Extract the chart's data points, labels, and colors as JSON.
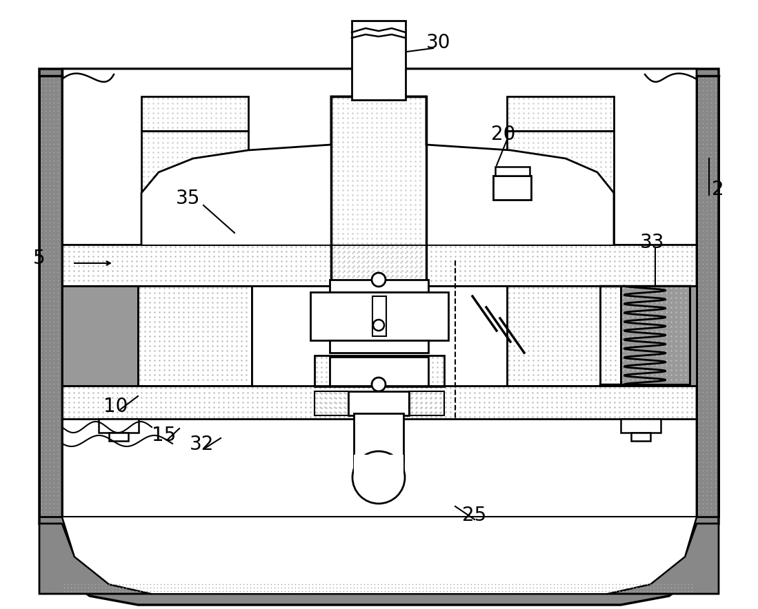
{
  "bg_color": "#ffffff",
  "lc": "#000000",
  "lgray": "#aaaaaa",
  "dgray": "#888888",
  "dot_gray": "#cccccc",
  "med_gray": "#999999",
  "figsize": [
    10.99,
    8.84
  ],
  "dpi": 100
}
